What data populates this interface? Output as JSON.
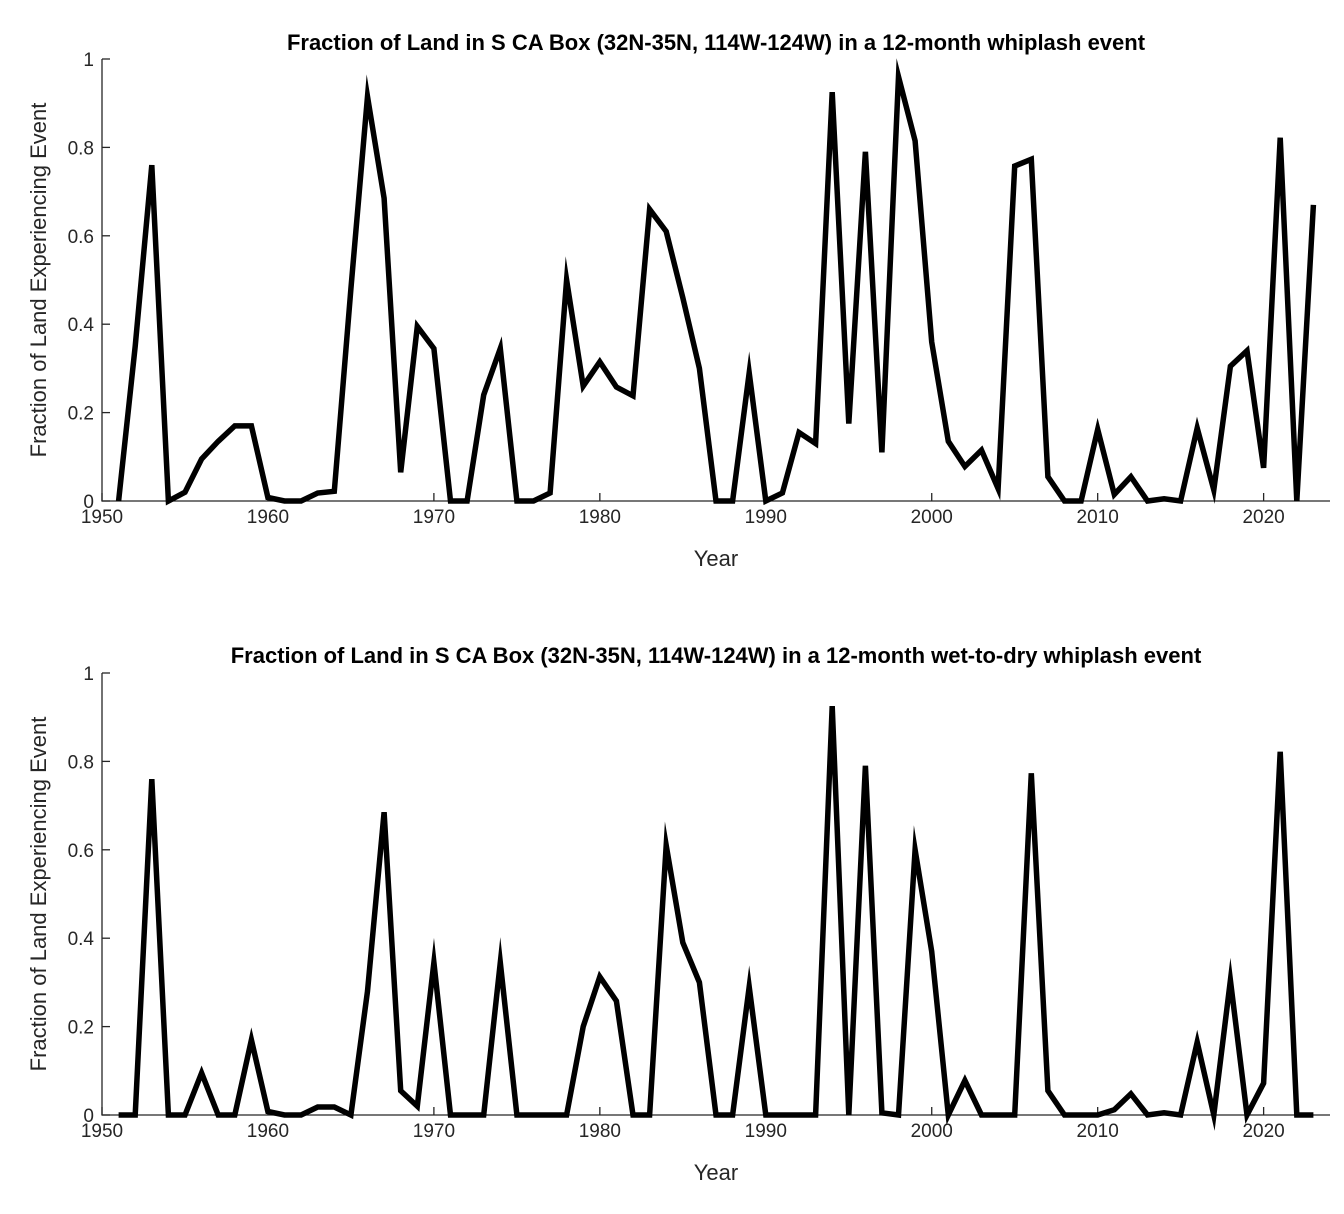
{
  "chart_data": [
    {
      "type": "line",
      "title": "Fraction of Land in S CA Box (32N-35N, 114W-124W) in a 12-month whiplash event",
      "xlabel": "Year",
      "ylabel": "Fraction of Land Experiencing Event",
      "xlim": [
        1950,
        2024
      ],
      "ylim": [
        0,
        1
      ],
      "xticks": [
        "1950",
        "1960",
        "1970",
        "1980",
        "1990",
        "2000",
        "2010",
        "2020"
      ],
      "yticks": [
        "0",
        "0.2",
        "0.4",
        "0.6",
        "0.8",
        "1"
      ],
      "grid": false,
      "series_color": "#000000",
      "x": [
        1951,
        1952,
        1953,
        1954,
        1955,
        1956,
        1957,
        1958,
        1959,
        1960,
        1961,
        1962,
        1963,
        1964,
        1965,
        1966,
        1967,
        1968,
        1969,
        1970,
        1971,
        1972,
        1973,
        1974,
        1975,
        1976,
        1977,
        1978,
        1979,
        1980,
        1981,
        1982,
        1983,
        1984,
        1985,
        1986,
        1987,
        1988,
        1989,
        1990,
        1991,
        1992,
        1993,
        1994,
        1995,
        1996,
        1997,
        1998,
        1999,
        2000,
        2001,
        2002,
        2003,
        2004,
        2005,
        2006,
        2007,
        2008,
        2009,
        2010,
        2011,
        2012,
        2013,
        2014,
        2015,
        2016,
        2017,
        2018,
        2019,
        2020,
        2021,
        2022,
        2023
      ],
      "y": [
        0,
        0.35,
        0.76,
        0,
        0.02,
        0.095,
        0.135,
        0.17,
        0.17,
        0.008,
        0,
        0,
        0.018,
        0.022,
        0.48,
        0.915,
        0.685,
        0.065,
        0.395,
        0.345,
        0,
        0,
        0.24,
        0.345,
        0,
        0,
        0.018,
        0.5,
        0.26,
        0.315,
        0.258,
        0.238,
        0.66,
        0.61,
        0.46,
        0.3,
        0,
        0,
        0.29,
        0,
        0.018,
        0.155,
        0.13,
        0.925,
        0.175,
        0.79,
        0.11,
        0.96,
        0.815,
        0.36,
        0.135,
        0.078,
        0.115,
        0.028,
        0.758,
        0.773,
        0.055,
        0,
        0,
        0.162,
        0.015,
        0.055,
        0,
        0.005,
        0,
        0.165,
        0.025,
        0.305,
        0.34,
        0.075,
        0.822,
        0,
        0.67
      ]
    },
    {
      "type": "line",
      "title": "Fraction of Land in S CA Box (32N-35N, 114W-124W) in a 12-month wet-to-dry whiplash event",
      "xlabel": "Year",
      "ylabel": "Fraction of Land Experiencing Event",
      "xlim": [
        1950,
        2024
      ],
      "ylim": [
        0,
        1
      ],
      "xticks": [
        "1950",
        "1960",
        "1970",
        "1980",
        "1990",
        "2000",
        "2010",
        "2020"
      ],
      "yticks": [
        "0",
        "0.2",
        "0.4",
        "0.6",
        "0.8",
        "1"
      ],
      "grid": false,
      "series_color": "#000000",
      "x": [
        1951,
        1952,
        1953,
        1954,
        1955,
        1956,
        1957,
        1958,
        1959,
        1960,
        1961,
        1962,
        1963,
        1964,
        1965,
        1966,
        1967,
        1968,
        1969,
        1970,
        1971,
        1972,
        1973,
        1974,
        1975,
        1976,
        1977,
        1978,
        1979,
        1980,
        1981,
        1982,
        1983,
        1984,
        1985,
        1986,
        1987,
        1988,
        1989,
        1990,
        1991,
        1992,
        1993,
        1994,
        1995,
        1996,
        1997,
        1998,
        1999,
        2000,
        2001,
        2002,
        2003,
        2004,
        2005,
        2006,
        2007,
        2008,
        2009,
        2010,
        2011,
        2012,
        2013,
        2014,
        2015,
        2016,
        2017,
        2018,
        2019,
        2020,
        2021,
        2022,
        2023
      ],
      "y": [
        0,
        0,
        0.76,
        0,
        0,
        0.095,
        0,
        0,
        0.17,
        0.008,
        0,
        0,
        0.018,
        0.018,
        0,
        0.28,
        0.685,
        0.055,
        0.02,
        0.345,
        0,
        0,
        0,
        0.345,
        0,
        0,
        0,
        0,
        0.2,
        0.313,
        0.258,
        0,
        0,
        0.61,
        0.39,
        0.3,
        0,
        0,
        0.29,
        0,
        0,
        0,
        0,
        0.925,
        0,
        0.79,
        0.005,
        0,
        0.6,
        0.37,
        0,
        0.078,
        0,
        0,
        0,
        0.773,
        0.055,
        0,
        0,
        0,
        0.012,
        0.048,
        0,
        0.005,
        0,
        0.165,
        0,
        0.305,
        0,
        0.072,
        0.822,
        0,
        0
      ]
    }
  ]
}
